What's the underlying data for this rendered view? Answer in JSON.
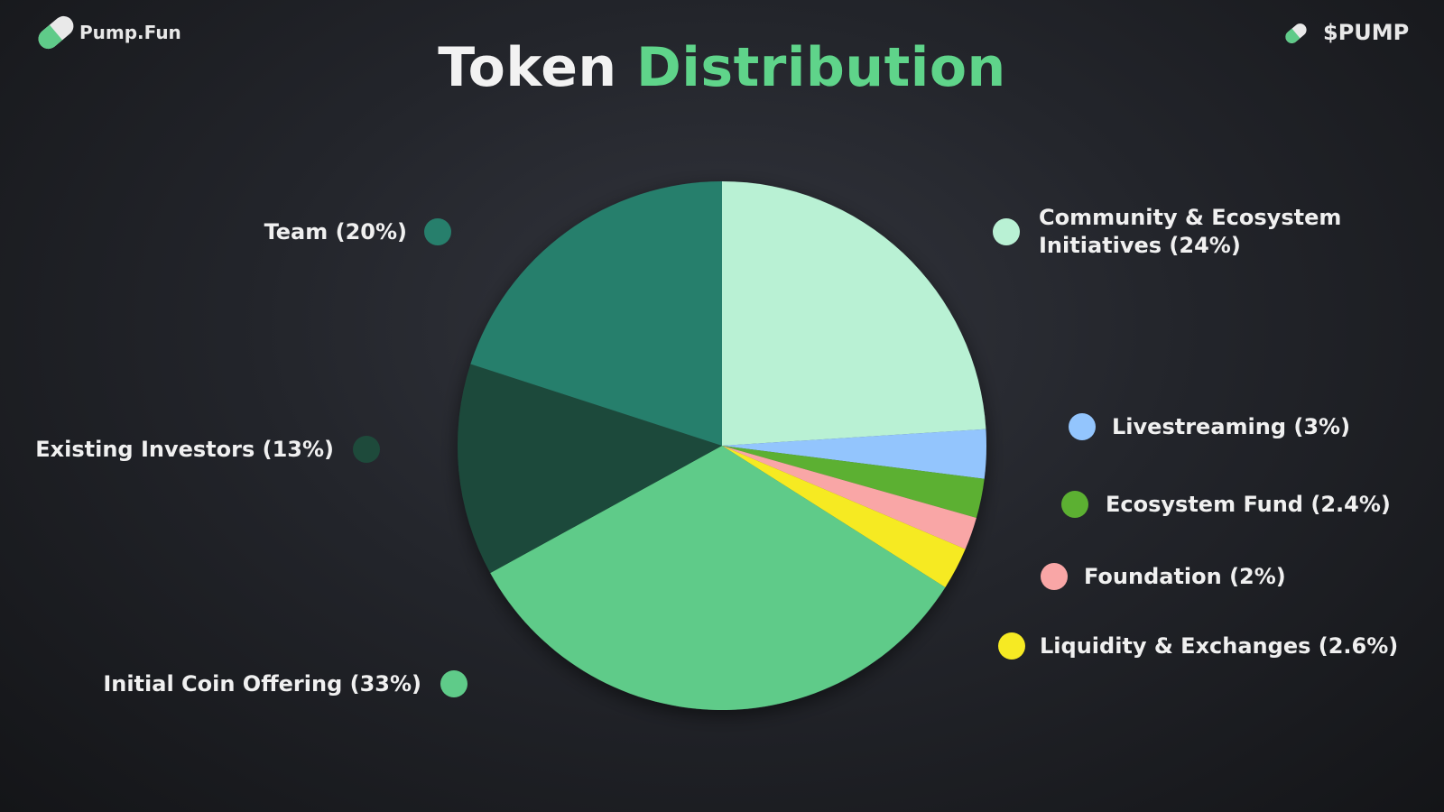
{
  "brand": "Pump.Fun",
  "ticker": "$PUMP",
  "chart_data": {
    "type": "pie",
    "title": "Token",
    "title_highlight": "Distribution",
    "categories": [
      "Community & Ecosystem Initiatives (24%)",
      "Livestreaming (3%)",
      "Ecosystem Fund (2.4%)",
      "Foundation (2%)",
      "Liquidity & Exchanges (2.6%)",
      "Initial Coin Offering (33%)",
      "Existing Investors (13%)",
      "Team (20%)"
    ],
    "values": [
      24,
      3,
      2.4,
      2,
      2.6,
      33,
      13,
      20
    ],
    "colors": [
      "#b9f1d4",
      "#93c5fd",
      "#5cb032",
      "#f9a6a6",
      "#f6ea23",
      "#5fcb89",
      "#1e4a3b",
      "#277f6c"
    ]
  }
}
